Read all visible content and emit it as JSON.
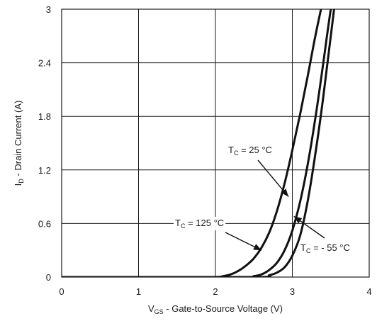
{
  "chart_data": {
    "type": "line",
    "xlabel_main": "V",
    "xlabel_sub": "GS",
    "xlabel_rest": " - Gate-to-Source Voltage (V)",
    "ylabel_main": "I",
    "ylabel_sub": "D",
    "ylabel_rest": " - Drain Current (A)",
    "xlim": [
      0,
      4
    ],
    "ylim": [
      0,
      3
    ],
    "xticks": [
      0,
      1,
      2,
      3,
      4
    ],
    "yticks": [
      0,
      0.6,
      1.2,
      1.8,
      2.4,
      3
    ],
    "xtick_labels": [
      "0",
      "1",
      "2",
      "3",
      "4"
    ],
    "ytick_labels": [
      "0",
      "0.6",
      "1.2",
      "1.8",
      "2.4",
      "3"
    ],
    "grid": true,
    "series": [
      {
        "label_main": "T",
        "label_sub": "C",
        "label_rest": " = 125 °C",
        "x": [
          0,
          1.5,
          2.0,
          2.1,
          2.2,
          2.3,
          2.4,
          2.5,
          2.6,
          2.7,
          2.8,
          2.9,
          3.0,
          3.1,
          3.2,
          3.3,
          3.4,
          3.5
        ],
        "y": [
          0.0,
          0.0,
          0.0,
          0.01,
          0.03,
          0.07,
          0.13,
          0.21,
          0.33,
          0.5,
          0.74,
          1.05,
          1.42,
          1.82,
          2.25,
          2.7,
          3.1,
          3.4
        ]
      },
      {
        "label_main": "T",
        "label_sub": "C",
        "label_rest": " = 25 °C",
        "x": [
          0,
          1.5,
          2.4,
          2.5,
          2.6,
          2.7,
          2.8,
          2.9,
          3.0,
          3.1,
          3.2,
          3.3,
          3.4,
          3.5,
          3.6
        ],
        "y": [
          0.0,
          0.0,
          0.0,
          0.01,
          0.03,
          0.08,
          0.16,
          0.3,
          0.52,
          0.84,
          1.26,
          1.78,
          2.38,
          3.0,
          3.5
        ]
      },
      {
        "label_main": "T",
        "label_sub": "C",
        "label_rest": " = - 55 °C",
        "x": [
          0,
          1.5,
          2.6,
          2.7,
          2.8,
          2.9,
          3.0,
          3.1,
          3.2,
          3.3,
          3.4,
          3.5,
          3.6
        ],
        "y": [
          0.0,
          0.0,
          0.0,
          0.02,
          0.05,
          0.11,
          0.24,
          0.46,
          0.85,
          1.38,
          2.0,
          2.7,
          3.4
        ]
      }
    ],
    "annotations": [
      {
        "series": 1,
        "point": [
          2.95,
          0.9
        ]
      },
      {
        "series": 0,
        "point": [
          2.6,
          0.3
        ]
      },
      {
        "series": 2,
        "point": [
          3.02,
          0.68
        ]
      }
    ]
  }
}
